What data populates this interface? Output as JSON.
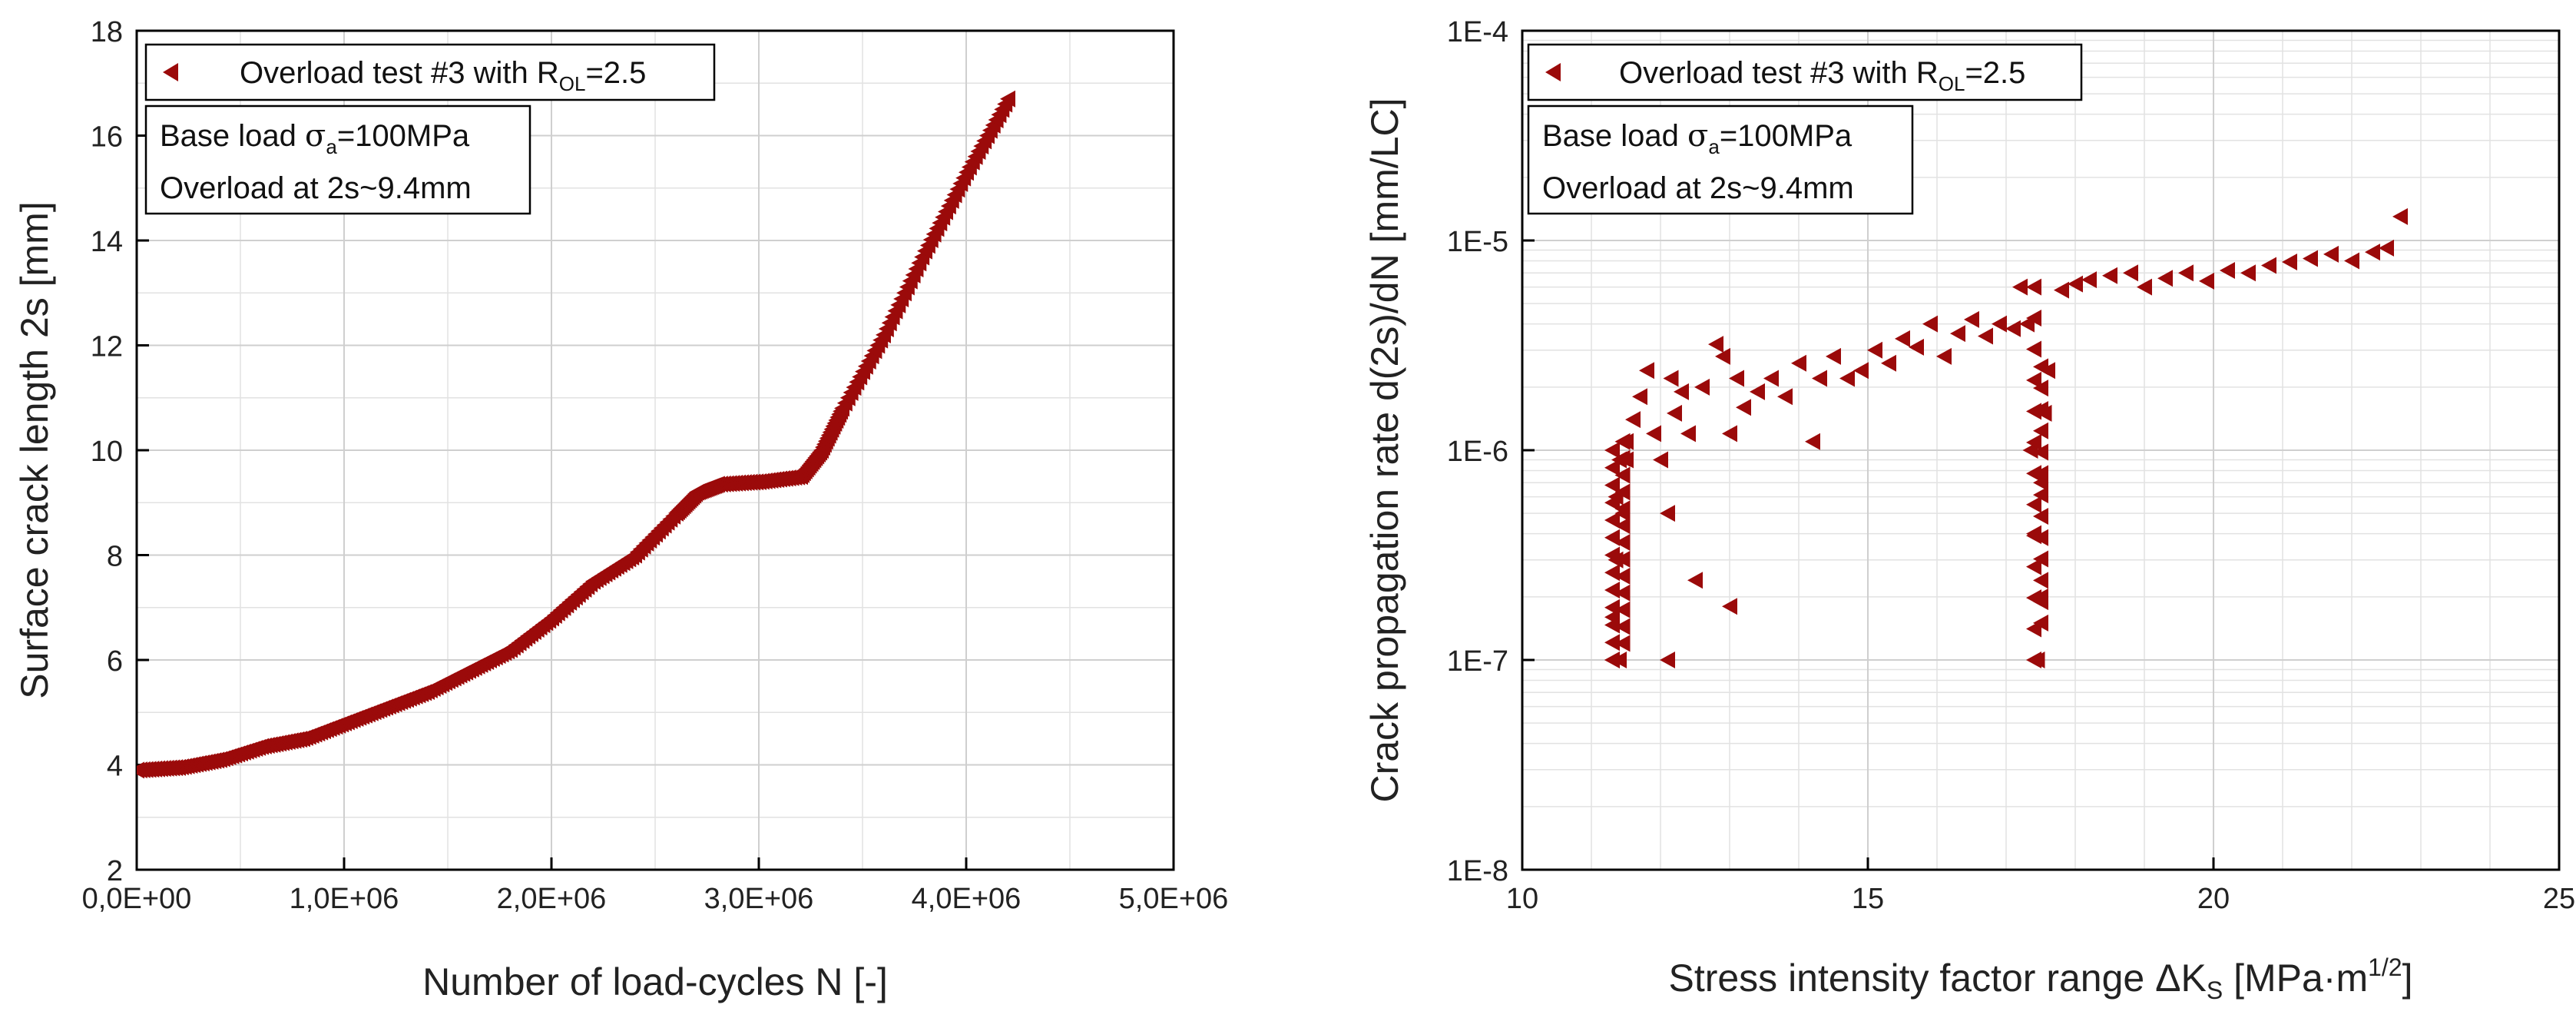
{
  "charts": [
    {
      "id": "left",
      "type": "scatter",
      "xlabel": "Number of load-cycles N [-]",
      "ylabel": "Surface crack length 2s [mm]",
      "xlim": [
        0,
        5000000
      ],
      "ylim": [
        2,
        18
      ],
      "xticks": [
        0,
        1000000,
        2000000,
        3000000,
        4000000,
        5000000
      ],
      "xtick_labels": [
        "0,0E+00",
        "1,0E+06",
        "2,0E+06",
        "3,0E+06",
        "4,0E+06",
        "5,0E+06"
      ],
      "yticks": [
        2,
        4,
        6,
        8,
        10,
        12,
        14,
        16,
        18
      ],
      "ytick_labels": [
        "2",
        "4",
        "6",
        "8",
        "10",
        "12",
        "14",
        "16",
        "18"
      ],
      "legend": {
        "label_main": "Overload test #3 with R",
        "label_sub": "OL",
        "label_tail": "=2.5"
      },
      "info": {
        "line1_pre": "Base load ",
        "line1_sym": "σ",
        "line1_sub": "a",
        "line1_post": "=100MPa",
        "line2": "Overload at 2s~9.4mm"
      },
      "marker_color": "#9b0a0a",
      "x": [
        0,
        200000,
        400000,
        600000,
        800000,
        1000000,
        1200000,
        1400000,
        1600000,
        1800000,
        2000000,
        2200000,
        2400000,
        2600000,
        2700000,
        2800000,
        3000000,
        3200000,
        3300000,
        3400000,
        3600000,
        3800000,
        4000000,
        4200000
      ],
      "y": [
        3.9,
        3.95,
        4.1,
        4.35,
        4.5,
        4.8,
        5.1,
        5.4,
        5.8,
        6.2,
        6.8,
        7.5,
        8.0,
        8.8,
        9.2,
        9.35,
        9.4,
        9.5,
        10.0,
        10.8,
        12.2,
        13.8,
        15.3,
        16.7
      ]
    },
    {
      "id": "right",
      "type": "scatter",
      "xlabel_main": "Stress intensity factor range ΔK",
      "xlabel_sub": "S",
      "xlabel_unit_a": " [MPa",
      "xlabel_dot": "·",
      "xlabel_unit_b": "m",
      "xlabel_sup": "1/2",
      "xlabel_close": "]",
      "ylabel": "Crack propagation rate d(2s)/dN [mm/LC]",
      "xlim": [
        10,
        25
      ],
      "ylim": [
        1e-08,
        0.0001
      ],
      "yscale": "log",
      "xticks": [
        10,
        15,
        20,
        25
      ],
      "xtick_labels": [
        "10",
        "15",
        "20",
        "25"
      ],
      "yticks": [
        1e-08,
        1e-07,
        1e-06,
        1e-05,
        0.0001
      ],
      "ytick_labels": [
        "1E-8",
        "1E-7",
        "1E-6",
        "1E-5",
        "1E-4"
      ],
      "legend": {
        "label_main": "Overload test #3 with R",
        "label_sub": "OL",
        "label_tail": "=2.5"
      },
      "info": {
        "line1_pre": "Base load ",
        "line1_sym": "σ",
        "line1_sub": "a",
        "line1_post": "=100MPa",
        "line2": "Overload at 2s~9.4mm"
      },
      "marker_color": "#9b0a0a",
      "x": [
        11.3,
        11.3,
        11.35,
        11.35,
        11.4,
        11.4,
        11.45,
        11.5,
        11.5,
        11.6,
        11.7,
        11.8,
        11.9,
        12.0,
        12.1,
        12.1,
        12.15,
        12.2,
        12.3,
        12.4,
        12.5,
        12.6,
        12.8,
        12.9,
        13.0,
        13.0,
        13.1,
        13.2,
        13.4,
        13.6,
        13.8,
        14.0,
        14.2,
        14.3,
        14.5,
        14.7,
        14.9,
        15.1,
        15.3,
        15.5,
        15.7,
        15.9,
        16.1,
        16.3,
        16.5,
        16.7,
        16.9,
        17.1,
        17.2,
        17.3,
        17.35,
        17.4,
        17.45,
        17.5,
        17.5,
        17.55,
        17.6,
        17.8,
        18.0,
        18.2,
        18.5,
        18.8,
        19.0,
        19.3,
        19.6,
        19.9,
        20.2,
        20.5,
        20.8,
        21.1,
        21.4,
        21.7,
        22.0,
        22.3,
        22.5,
        22.7
      ],
      "y": [
        1e-07,
        1.6e-07,
        3e-07,
        6e-07,
        9e-07,
        1e-07,
        5e-07,
        9e-07,
        1.1e-06,
        1.4e-06,
        1.8e-06,
        2.4e-06,
        1.2e-06,
        9e-07,
        5e-07,
        1e-07,
        2.2e-06,
        1.5e-06,
        1.9e-06,
        1.2e-06,
        2.4e-07,
        2e-06,
        3.2e-06,
        2.8e-06,
        1.8e-07,
        1.2e-06,
        2.2e-06,
        1.6e-06,
        1.9e-06,
        2.2e-06,
        1.8e-06,
        2.6e-06,
        1.1e-06,
        2.2e-06,
        2.8e-06,
        2.2e-06,
        2.4e-06,
        3e-06,
        2.6e-06,
        3.4e-06,
        3.1e-06,
        4e-06,
        2.8e-06,
        3.6e-06,
        4.2e-06,
        3.5e-06,
        4e-06,
        3.8e-06,
        6e-06,
        4e-06,
        1e-06,
        4e-07,
        1e-07,
        2e-07,
        7e-07,
        1.5e-06,
        2.4e-06,
        5.8e-06,
        6.2e-06,
        6.5e-06,
        6.8e-06,
        7e-06,
        6e-06,
        6.6e-06,
        7e-06,
        6.4e-06,
        7.2e-06,
        7e-06,
        7.6e-06,
        7.9e-06,
        8.2e-06,
        8.6e-06,
        8e-06,
        8.8e-06,
        9.2e-06,
        1.3e-05
      ]
    }
  ]
}
